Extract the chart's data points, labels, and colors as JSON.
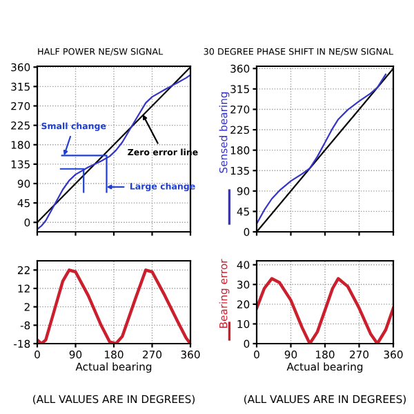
{
  "chart_data": [
    {
      "type": "line",
      "title": "HALF POWER NE/SW SIGNAL",
      "xlim": [
        0,
        360
      ],
      "ylim": [
        -22,
        362
      ],
      "xticks": [
        0,
        90,
        180,
        270,
        360
      ],
      "yticks": [
        0,
        45,
        90,
        135,
        180,
        225,
        270,
        315,
        360
      ],
      "grid": true,
      "tick_labels": "y",
      "series": [
        {
          "color": "#000000",
          "x": [
            0,
            360
          ],
          "values": [
            0,
            360
          ]
        },
        {
          "color": "#3535c8",
          "x": [
            0,
            10,
            20,
            40,
            60,
            75,
            90,
            120,
            150,
            170,
            185,
            200,
            230,
            255,
            270,
            300,
            330,
            350,
            360
          ],
          "values": [
            -16,
            -8,
            4,
            40,
            76,
            97,
            111,
            128,
            142,
            153,
            167,
            186,
            236,
            277,
            291,
            308,
            324,
            335,
            342
          ]
        },
        {
          "color": "#1f3fd0",
          "x": [
            55,
            109,
            109,
            null,
            58,
            163,
            163
          ],
          "values": [
            124,
            124,
            70,
            null,
            155,
            155,
            70
          ]
        }
      ],
      "annotations": [
        {
          "text": "Small change",
          "x": 63,
          "y": 155
        },
        {
          "text": "Large change",
          "x": 163,
          "y": 82
        },
        {
          "text": "Zero error line",
          "x": 248,
          "y": 250
        }
      ]
    },
    {
      "type": "line",
      "title": "30 DEGREE PHASE SHIFT IN NE/SW SIGNAL",
      "ylabel": "Sensed bearing",
      "xlim": [
        0,
        360
      ],
      "ylim": [
        0,
        365
      ],
      "xticks": [
        0,
        90,
        180,
        270,
        360
      ],
      "yticks": [
        0,
        45,
        90,
        135,
        180,
        225,
        270,
        315,
        360
      ],
      "grid": true,
      "tick_labels": "y",
      "series": [
        {
          "color": "#000000",
          "x": [
            0,
            360
          ],
          "values": [
            0,
            360
          ]
        },
        {
          "color": "#3535c8",
          "x": [
            0,
            20,
            40,
            60,
            90,
            120,
            140,
            160,
            180,
            200,
            215,
            240,
            270,
            300,
            318,
            340
          ],
          "values": [
            18,
            48,
            73,
            91,
            112,
            128,
            140,
            166,
            197,
            228,
            248,
            269,
            288,
            305,
            318,
            347
          ]
        }
      ]
    },
    {
      "type": "line",
      "xlabel": "Actual bearing",
      "xlim": [
        0,
        360
      ],
      "ylim": [
        -18,
        27
      ],
      "xticks": [
        0,
        90,
        180,
        270,
        360
      ],
      "yticks": [
        -18,
        -8,
        2,
        12,
        22
      ],
      "grid": true,
      "series": [
        {
          "color": "#cc1f2e",
          "x": [
            0,
            10,
            20,
            40,
            60,
            75,
            90,
            120,
            150,
            170,
            185,
            200,
            230,
            255,
            270,
            300,
            330,
            350,
            360
          ],
          "values": [
            -16,
            -18,
            -16,
            0,
            16,
            22,
            21,
            8,
            -8,
            -17,
            -18,
            -14,
            6,
            22,
            21,
            8,
            -6,
            -15,
            -18
          ]
        }
      ],
      "annotations": [
        "(ALL VALUES ARE IN DEGREES)"
      ]
    },
    {
      "type": "line",
      "xlabel": "Actual bearing",
      "ylabel": "Bearing error",
      "xlim": [
        0,
        360
      ],
      "ylim": [
        0,
        42
      ],
      "xticks": [
        0,
        90,
        180,
        270,
        360
      ],
      "yticks": [
        0,
        10,
        20,
        30,
        40
      ],
      "grid": true,
      "series": [
        {
          "color": "#cc1f2e",
          "x": [
            0,
            20,
            40,
            60,
            90,
            120,
            140,
            160,
            180,
            200,
            215,
            240,
            270,
            300,
            318,
            340,
            360
          ],
          "values": [
            18,
            28,
            33,
            31,
            22,
            8,
            0,
            6,
            17,
            28,
            33,
            29,
            18,
            5,
            0,
            7,
            18
          ]
        }
      ],
      "annotations": [
        "(ALL VALUES ARE IN DEGREES)"
      ]
    }
  ]
}
